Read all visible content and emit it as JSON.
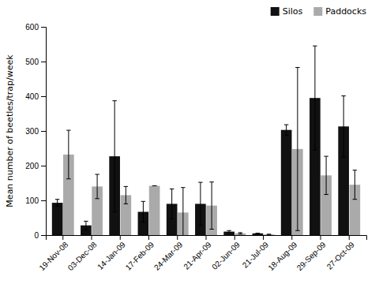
{
  "chart_data": {
    "type": "bar",
    "categories": [
      "19-Nov-08",
      "03-Dec-08",
      "14-Jan-09",
      "17-Feb-09",
      "24-Mar-09",
      "21-Apr-09",
      "02-Jun-09",
      "21-Jul-09",
      "18-Aug-09",
      "29-Sep-09",
      "27-Oct-09"
    ],
    "series": [
      {
        "name": "Silos",
        "color": "#111111",
        "values": [
          93,
          28,
          227,
          67,
          90,
          90,
          10,
          5,
          303,
          395,
          313
        ],
        "errors": [
          10,
          12,
          160,
          30,
          43,
          62,
          3,
          0,
          15,
          150,
          88
        ]
      },
      {
        "name": "Paddocks",
        "color": "#aaaaaa",
        "values": [
          232,
          140,
          115,
          142,
          65,
          85,
          5,
          2,
          248,
          172,
          145
        ],
        "errors": [
          70,
          35,
          25,
          0,
          72,
          68,
          2,
          0,
          235,
          55,
          42
        ]
      }
    ],
    "ylabel": "Mean number of beetles/trap/week",
    "ylim": [
      0,
      600
    ],
    "yticks": [
      0,
      100,
      200,
      300,
      400,
      500,
      600
    ],
    "grid": false,
    "legend": "upper right"
  }
}
